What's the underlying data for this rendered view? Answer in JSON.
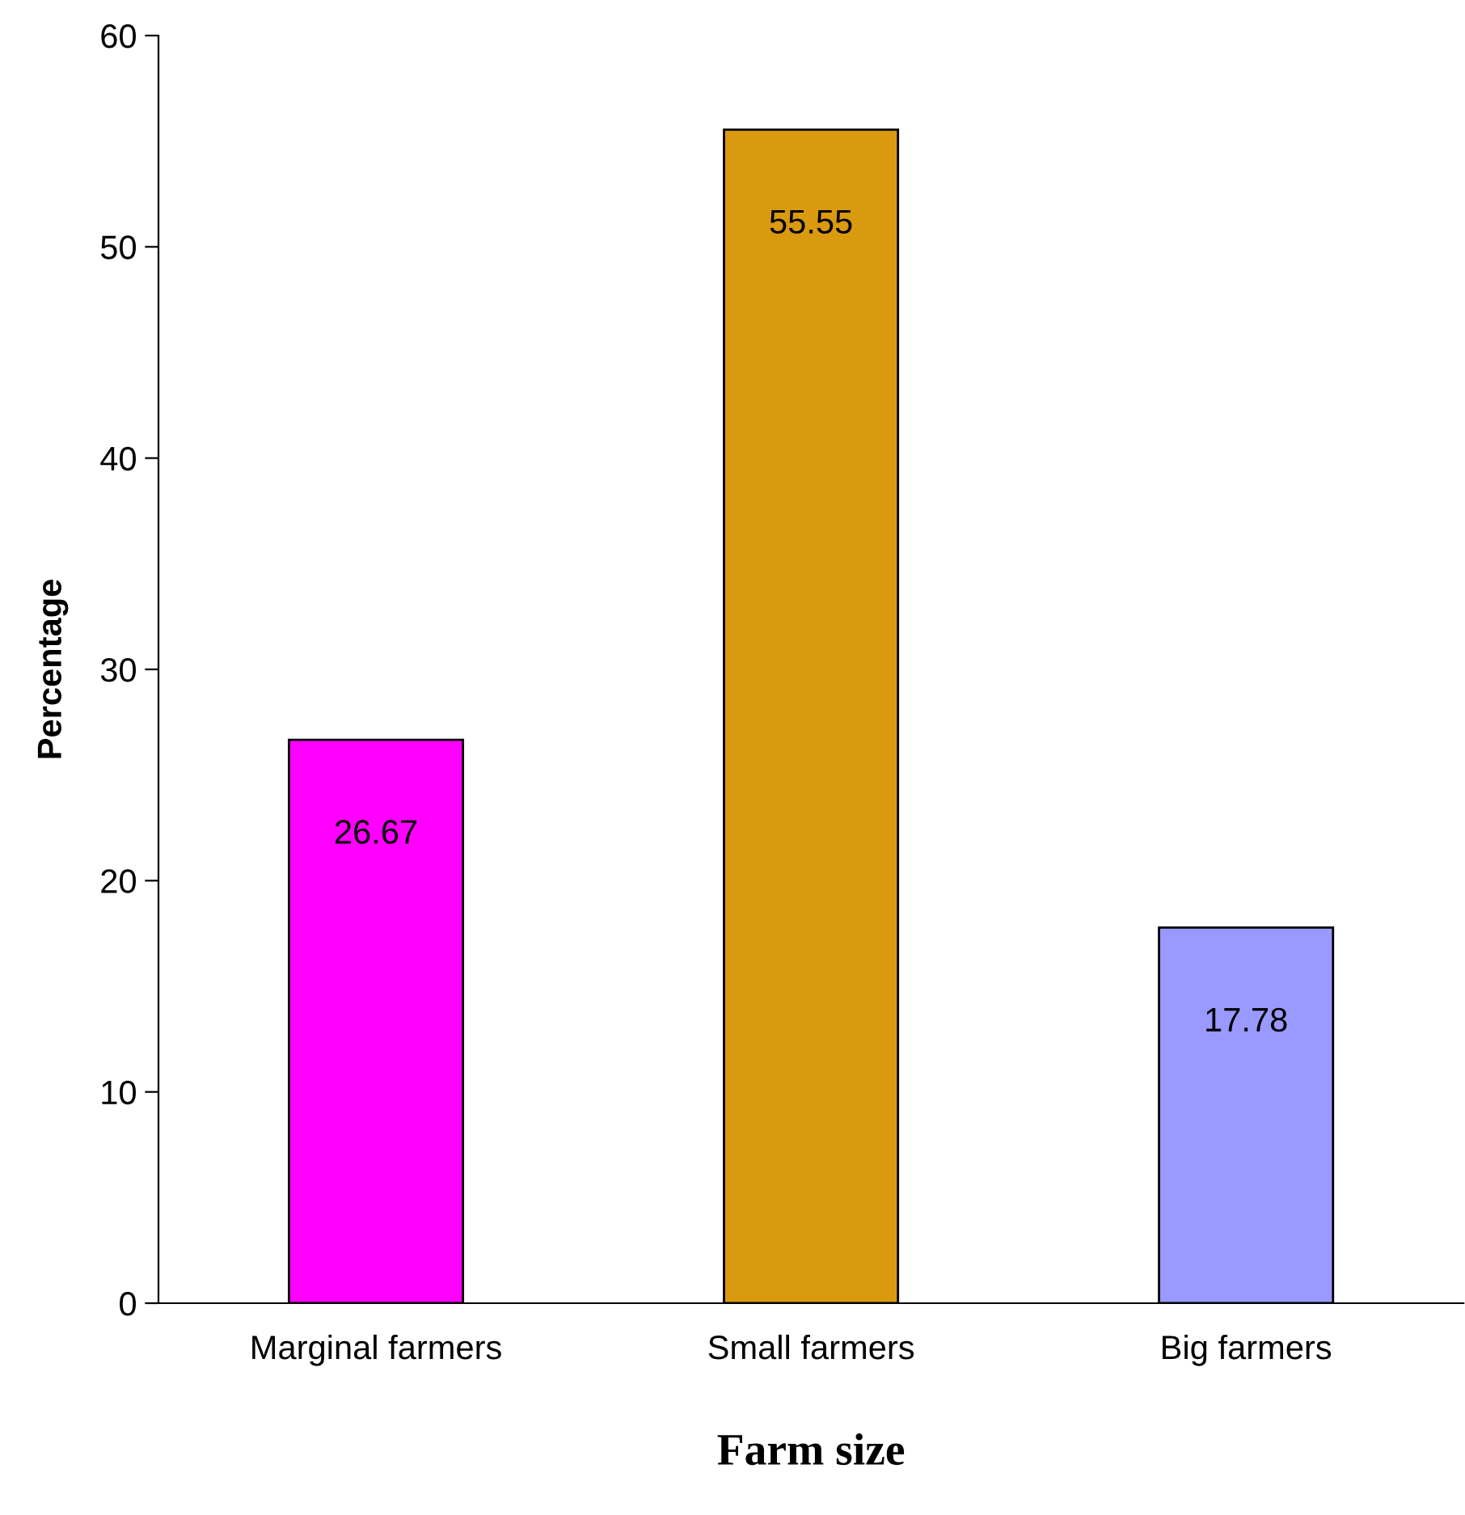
{
  "chart_data": {
    "type": "bar",
    "xlabel": "Farm size",
    "ylabel": "Percentage",
    "categories": [
      "Marginal farmers",
      "Small farmers",
      "Big farmers"
    ],
    "values": [
      26.67,
      55.55,
      17.78
    ],
    "colors": [
      "#ff00ff",
      "#d99a10",
      "#9999ff"
    ],
    "ylim": [
      0,
      60
    ],
    "yticks": [
      0,
      10,
      20,
      30,
      40,
      50,
      60
    ],
    "grid": false,
    "legend": false,
    "data_labels": true
  }
}
